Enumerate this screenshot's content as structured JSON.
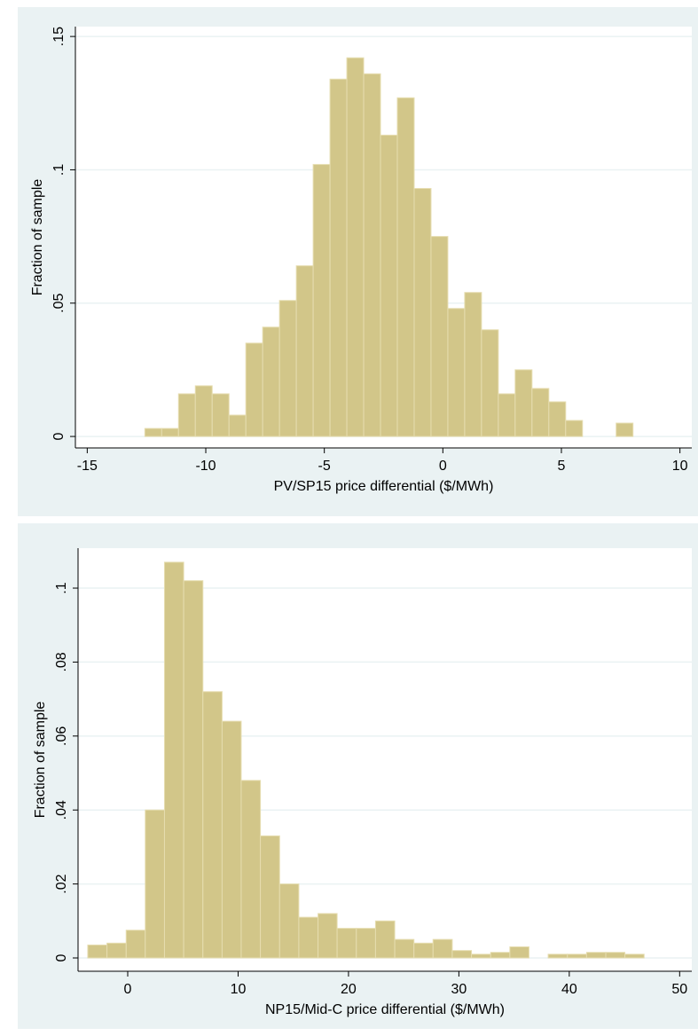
{
  "chart_data": [
    {
      "type": "histogram",
      "ylabel": "Fraction of sample",
      "xlabel": "PV/SP15 price differential ($/MWh)",
      "bins": [
        -12.57,
        -11.86,
        -11.15,
        -10.44,
        -9.73,
        -9.02,
        -8.31,
        -7.6,
        -6.89,
        -6.18,
        -5.47,
        -4.76,
        -4.05,
        -3.34,
        -2.63,
        -1.92,
        -1.21,
        -0.5,
        0.21,
        0.92,
        1.63,
        2.34,
        3.05,
        3.76,
        4.47,
        5.18,
        5.89,
        6.6,
        7.31,
        8.02
      ],
      "values": [
        0.003,
        0.003,
        0.016,
        0.019,
        0.016,
        0.008,
        0.035,
        0.041,
        0.051,
        0.064,
        0.102,
        0.134,
        0.142,
        0.136,
        0.113,
        0.127,
        0.093,
        0.075,
        0.048,
        0.054,
        0.04,
        0.016,
        0.025,
        0.018,
        0.013,
        0.006,
        0,
        0,
        0.005
      ],
      "color": "#d2c689",
      "xlim": [
        -15.5,
        10.5
      ],
      "ylim": [
        -0.0043,
        0.1537
      ],
      "xticks": [
        -15,
        -10,
        -5,
        0,
        5,
        10
      ],
      "yticks": [
        0,
        {
          "value": 0.05,
          "label": ".05"
        },
        {
          "value": 0.1,
          "label": ".1"
        },
        {
          "value": 0.15,
          "label": ".15"
        }
      ],
      "grid": true
    },
    {
      "type": "histogram",
      "ylabel": "Fraction of sample",
      "xlabel": "NP15/Mid-C price differential ($/MWh)",
      "bins": [
        -3.62,
        -1.88,
        -0.14,
        1.59,
        3.33,
        5.07,
        6.81,
        8.55,
        10.28,
        12.02,
        13.76,
        15.5,
        17.24,
        18.97,
        20.71,
        22.45,
        24.19,
        25.93,
        27.66,
        29.4,
        31.14,
        32.88,
        34.62,
        36.35,
        38.09,
        39.83,
        41.57,
        43.31,
        45.04,
        46.78
      ],
      "values": [
        0.0035,
        0.004,
        0.0075,
        0.04,
        0.107,
        0.102,
        0.072,
        0.064,
        0.048,
        0.033,
        0.02,
        0.011,
        0.012,
        0.008,
        0.008,
        0.01,
        0.005,
        0.004,
        0.005,
        0.002,
        0.001,
        0.0015,
        0.003,
        0,
        0.001,
        0.001,
        0.0015,
        0.0015,
        0.001
      ],
      "color": "#d2c689",
      "xlim": [
        -4.5,
        51.1
      ],
      "ylim": [
        -0.0036,
        0.1108
      ],
      "xticks": [
        0,
        10,
        20,
        30,
        40,
        50
      ],
      "yticks": [
        0,
        {
          "value": 0.02,
          "label": ".02"
        },
        {
          "value": 0.04,
          "label": ".04"
        },
        {
          "value": 0.06,
          "label": ".06"
        },
        {
          "value": 0.08,
          "label": ".08"
        },
        {
          "value": 0.1,
          "label": ".1"
        }
      ],
      "grid": true
    }
  ]
}
